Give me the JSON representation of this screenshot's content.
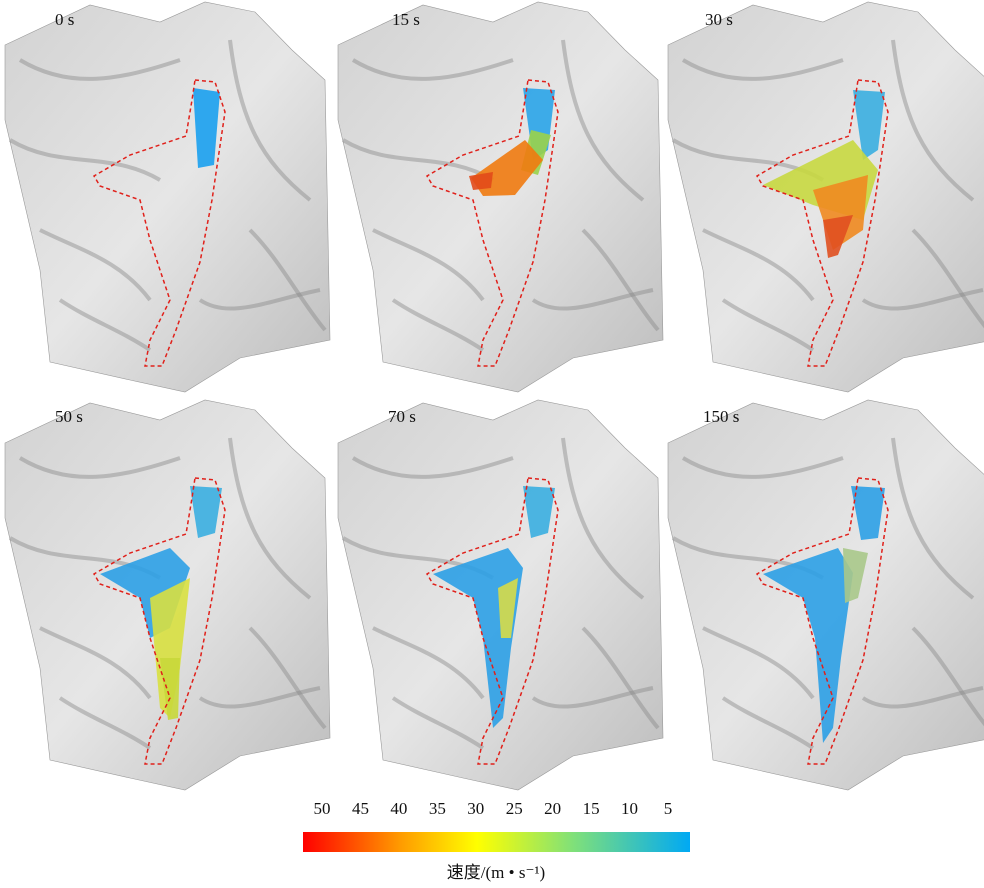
{
  "panels": [
    {
      "label": "0 s"
    },
    {
      "label": "15 s"
    },
    {
      "label": "30 s"
    },
    {
      "label": "50 s"
    },
    {
      "label": "70 s"
    },
    {
      "label": "150 s"
    }
  ],
  "colorbar": {
    "ticks": [
      "50",
      "45",
      "40",
      "35",
      "30",
      "25",
      "20",
      "15",
      "10",
      "5"
    ],
    "label": "速度/(m • s⁻¹)"
  }
}
